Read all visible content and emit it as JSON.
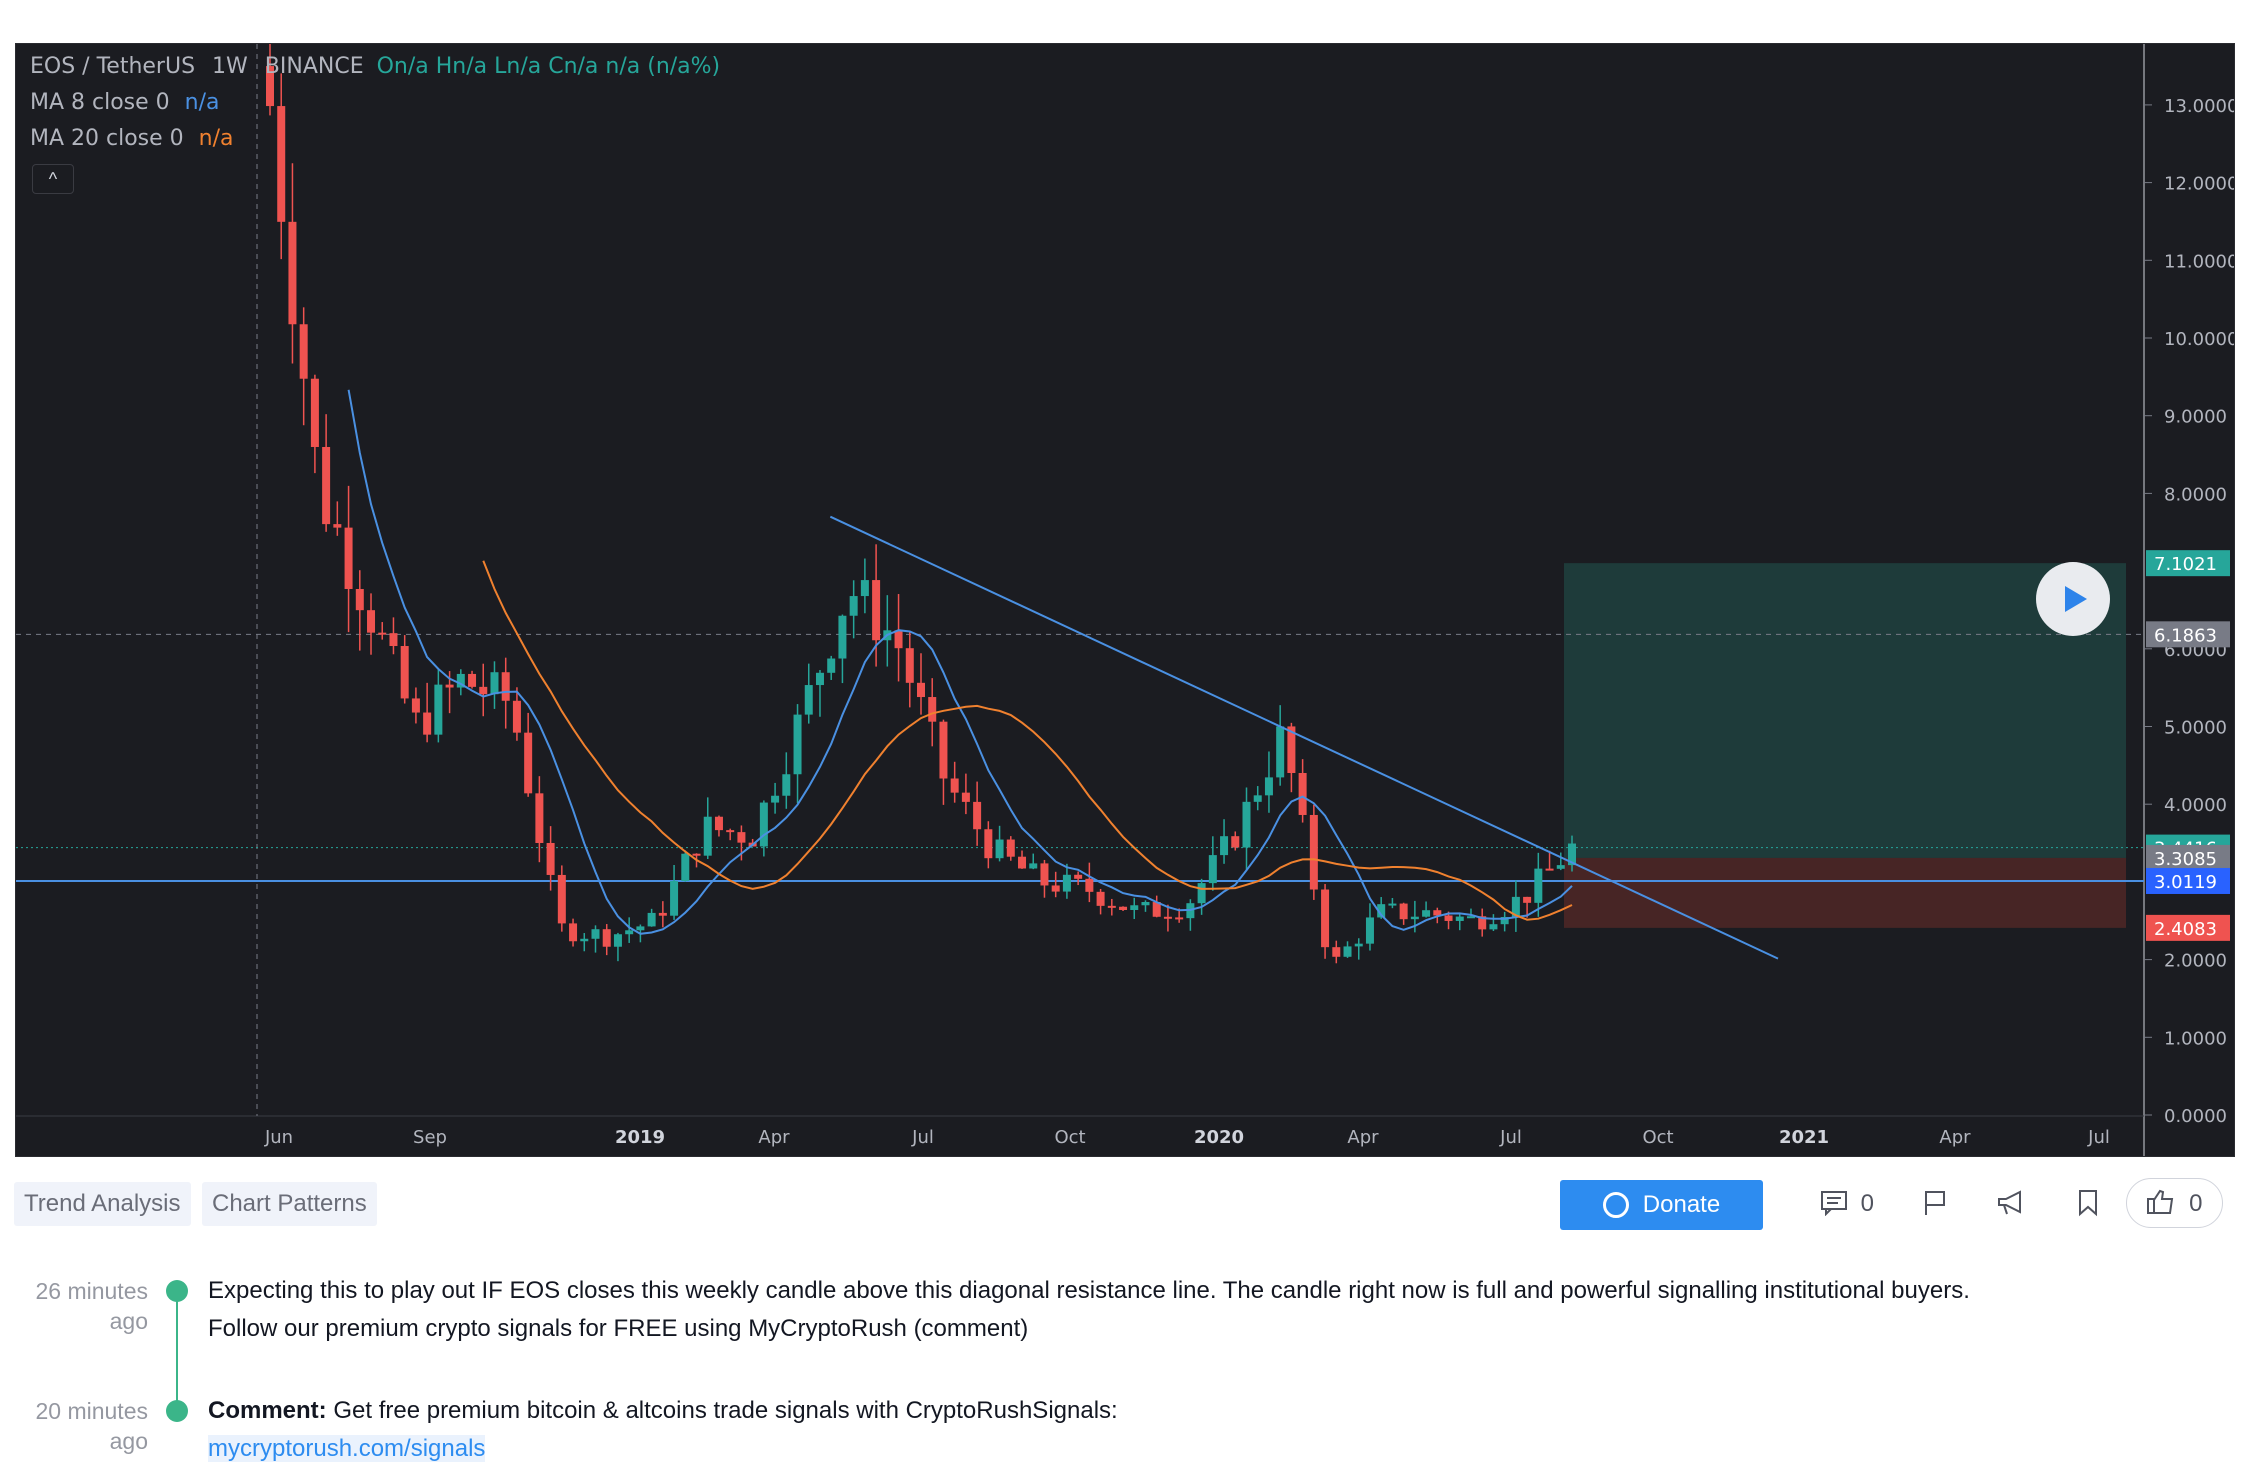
{
  "chart": {
    "legend": {
      "symbol": "EOS / TetherUS",
      "interval": "1W",
      "exchange": "BINANCE",
      "ohlc": "On/a Hn/a Ln/a Cn/a n/a (n/a%)",
      "ma8_label": "MA 8 close 0",
      "ma8_value": "n/a",
      "ma20_label": "MA 20 close 0",
      "ma20_value": "n/a",
      "toggle": "^"
    },
    "price_axis": [
      "13.0000",
      "12.0000",
      "11.0000",
      "10.0000",
      "9.0000",
      "8.0000",
      "6.0000",
      "5.0000",
      "4.0000",
      "2.0000",
      "1.0000",
      "0.0000"
    ],
    "time_axis": [
      {
        "label": "Jun",
        "bold": false
      },
      {
        "label": "Sep",
        "bold": false
      },
      {
        "label": "2019",
        "bold": true
      },
      {
        "label": "Apr",
        "bold": false
      },
      {
        "label": "Jul",
        "bold": false
      },
      {
        "label": "Oct",
        "bold": false
      },
      {
        "label": "2020",
        "bold": true
      },
      {
        "label": "Apr",
        "bold": false
      },
      {
        "label": "Jul",
        "bold": false
      },
      {
        "label": "Oct",
        "bold": false
      },
      {
        "label": "2021",
        "bold": true
      },
      {
        "label": "Apr",
        "bold": false
      },
      {
        "label": "Jul",
        "bold": false
      }
    ],
    "price_tags": [
      {
        "value": "7.1021",
        "price": 7.1021,
        "color": "#26a69a"
      },
      {
        "value": "6.1863",
        "price": 6.1863,
        "color": "#787b86"
      },
      {
        "value": "3.4416",
        "price": 3.4416,
        "color": "#26a69a"
      },
      {
        "value": "3.3085",
        "price": 3.3085,
        "color": "#787b86"
      },
      {
        "value": "3.0119",
        "price": 3.0119,
        "color": "#2962ff"
      },
      {
        "value": "2.4083",
        "price": 2.4083,
        "color": "#ef5350"
      }
    ],
    "colors": {
      "up": "#26a69a",
      "down": "#ef5350",
      "ma8": "#4a90e2",
      "ma20": "#f0812f",
      "trend": "#4a90e2"
    },
    "play_icon": "play-icon"
  },
  "chart_data": {
    "type": "candlestick",
    "title": "EOS / TetherUS 1W BINANCE",
    "x": [
      "2018-05",
      "2018-06",
      "2018-07",
      "2018-08",
      "2018-09",
      "2018-10",
      "2018-11",
      "2018-12",
      "2019-01",
      "2019-02",
      "2019-03",
      "2019-04",
      "2019-05",
      "2019-06",
      "2019-07",
      "2019-08",
      "2019-09",
      "2019-10",
      "2019-11",
      "2019-12",
      "2020-01",
      "2020-02",
      "2020-03",
      "2020-04",
      "2020-05",
      "2020-06",
      "2020-07",
      "2020-08"
    ],
    "close_approx": [
      13.0,
      8.1,
      6.6,
      5.0,
      5.6,
      5.3,
      2.4,
      2.3,
      2.5,
      3.7,
      3.6,
      5.1,
      6.8,
      6.1,
      4.3,
      3.4,
      3.0,
      2.9,
      2.6,
      2.7,
      3.6,
      4.9,
      1.9,
      2.6,
      2.6,
      2.5,
      2.8,
      3.44
    ],
    "series": [
      {
        "name": "MA 8 close 0"
      },
      {
        "name": "MA 20 close 0"
      }
    ],
    "ylim": [
      0,
      13.5
    ],
    "trendline": {
      "from": [
        "2019-06",
        7.7
      ],
      "to": [
        "2020-10",
        2.0
      ]
    },
    "horizontal_line": 3.0119,
    "crosshair": {
      "x": "2018-06",
      "price": 6.1863
    },
    "long_position": {
      "entry": 3.3085,
      "target": 7.1021,
      "stop": 2.4083
    }
  },
  "tags": [
    "Trend Analysis",
    "Chart Patterns"
  ],
  "actions": {
    "donate": "Donate",
    "comments_count": "0",
    "likes_count": "0",
    "icons": [
      "comment-icon",
      "flag-icon",
      "megaphone-icon",
      "bookmark-icon",
      "thumbs-up-icon"
    ]
  },
  "timeline": [
    {
      "time": "26 minutes ago",
      "line1": "Expecting this to play out IF EOS closes this weekly candle above this diagonal resistance line. The candle right now is full and powerful signalling institutional buyers.",
      "line2": "Follow our premium crypto signals for FREE using MyCryptoRush (comment)"
    },
    {
      "time": "20 minutes ago",
      "label": "Comment:",
      "text": " Get free premium bitcoin & altcoins trade signals with CryptoRushSignals:",
      "link": "mycryptorush.com/signals"
    }
  ]
}
